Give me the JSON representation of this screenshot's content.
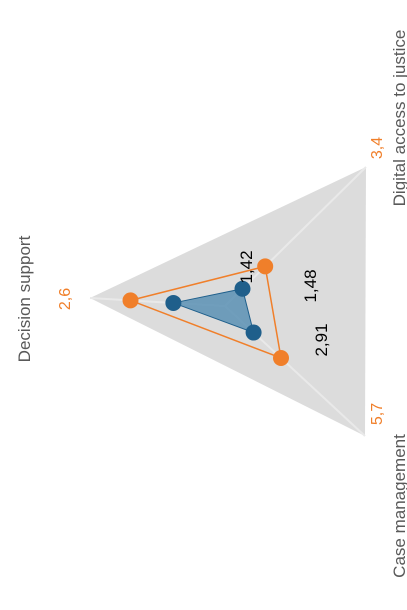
{
  "chart_data": {
    "type": "radar",
    "axes": [
      {
        "name": "Decision support",
        "max_label": "2,6"
      },
      {
        "name": "Digital access to justice",
        "max_label": "3,4"
      },
      {
        "name": "Case management",
        "max_label": "5,7"
      }
    ],
    "series": [
      {
        "values": [
          1.42,
          1.48,
          2.91
        ],
        "labels": [
          "1,42",
          "1,48",
          "2,91"
        ],
        "color": "#1f5f8b",
        "fill": "#5b90b4"
      },
      {
        "values": [
          2.6,
          3.4,
          5.7
        ],
        "color": "#f07f2a"
      }
    ],
    "max_values": [
      2.6,
      3.4,
      5.7
    ],
    "background_color": "#dcdcdc",
    "grid": true
  }
}
